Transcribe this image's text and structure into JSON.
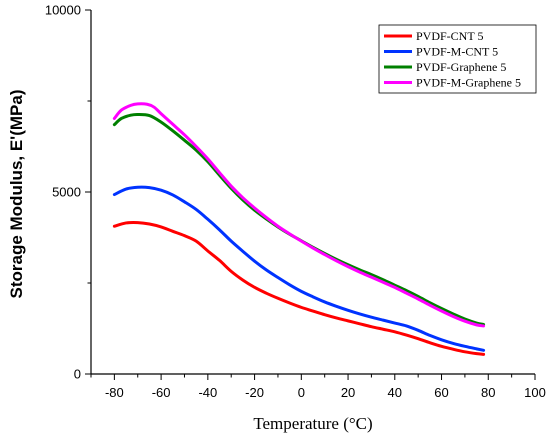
{
  "chart_data": {
    "type": "line",
    "xlabel": "Temperature (°C)",
    "ylabel": "Storage Modulus, E'(MPa)",
    "xlim": [
      -90,
      100
    ],
    "ylim": [
      0,
      10000
    ],
    "x_ticks": [
      -80,
      -60,
      -40,
      -20,
      0,
      20,
      40,
      60,
      80,
      100
    ],
    "y_ticks": [
      0,
      5000,
      10000
    ],
    "grid": false,
    "legend_position": "top-right",
    "series": [
      {
        "name": "PVDF-CNT 5",
        "color": "#ff0000",
        "points": [
          [
            -80,
            4060
          ],
          [
            -75,
            4150
          ],
          [
            -70,
            4160
          ],
          [
            -65,
            4120
          ],
          [
            -60,
            4040
          ],
          [
            -55,
            3920
          ],
          [
            -50,
            3800
          ],
          [
            -45,
            3650
          ],
          [
            -40,
            3380
          ],
          [
            -35,
            3120
          ],
          [
            -30,
            2820
          ],
          [
            -25,
            2580
          ],
          [
            -20,
            2380
          ],
          [
            -15,
            2220
          ],
          [
            -10,
            2080
          ],
          [
            -5,
            1950
          ],
          [
            0,
            1830
          ],
          [
            5,
            1730
          ],
          [
            10,
            1630
          ],
          [
            15,
            1540
          ],
          [
            20,
            1460
          ],
          [
            25,
            1380
          ],
          [
            30,
            1300
          ],
          [
            35,
            1230
          ],
          [
            40,
            1160
          ],
          [
            45,
            1070
          ],
          [
            50,
            970
          ],
          [
            55,
            860
          ],
          [
            60,
            760
          ],
          [
            65,
            680
          ],
          [
            70,
            610
          ],
          [
            75,
            560
          ],
          [
            78,
            540
          ]
        ]
      },
      {
        "name": "PVDF-M-CNT 5",
        "color": "#0033ff",
        "points": [
          [
            -80,
            4930
          ],
          [
            -75,
            5080
          ],
          [
            -70,
            5130
          ],
          [
            -65,
            5120
          ],
          [
            -60,
            5050
          ],
          [
            -55,
            4920
          ],
          [
            -50,
            4730
          ],
          [
            -45,
            4520
          ],
          [
            -40,
            4250
          ],
          [
            -35,
            3960
          ],
          [
            -30,
            3650
          ],
          [
            -25,
            3370
          ],
          [
            -20,
            3100
          ],
          [
            -15,
            2860
          ],
          [
            -10,
            2650
          ],
          [
            -5,
            2450
          ],
          [
            0,
            2270
          ],
          [
            5,
            2120
          ],
          [
            10,
            1980
          ],
          [
            15,
            1860
          ],
          [
            20,
            1750
          ],
          [
            25,
            1650
          ],
          [
            30,
            1560
          ],
          [
            35,
            1480
          ],
          [
            40,
            1400
          ],
          [
            45,
            1320
          ],
          [
            50,
            1200
          ],
          [
            55,
            1060
          ],
          [
            60,
            940
          ],
          [
            65,
            840
          ],
          [
            70,
            760
          ],
          [
            75,
            690
          ],
          [
            78,
            650
          ]
        ]
      },
      {
        "name": "PVDF-Graphene 5",
        "color": "#008000",
        "points": [
          [
            -80,
            6850
          ],
          [
            -77,
            7020
          ],
          [
            -73,
            7110
          ],
          [
            -70,
            7130
          ],
          [
            -65,
            7100
          ],
          [
            -60,
            6920
          ],
          [
            -55,
            6680
          ],
          [
            -50,
            6420
          ],
          [
            -45,
            6150
          ],
          [
            -40,
            5830
          ],
          [
            -35,
            5460
          ],
          [
            -30,
            5100
          ],
          [
            -25,
            4780
          ],
          [
            -20,
            4500
          ],
          [
            -15,
            4260
          ],
          [
            -10,
            4040
          ],
          [
            -5,
            3840
          ],
          [
            0,
            3660
          ],
          [
            5,
            3480
          ],
          [
            10,
            3310
          ],
          [
            15,
            3150
          ],
          [
            20,
            3000
          ],
          [
            25,
            2860
          ],
          [
            30,
            2730
          ],
          [
            35,
            2590
          ],
          [
            40,
            2440
          ],
          [
            45,
            2290
          ],
          [
            50,
            2130
          ],
          [
            55,
            1960
          ],
          [
            60,
            1800
          ],
          [
            65,
            1650
          ],
          [
            70,
            1510
          ],
          [
            75,
            1400
          ],
          [
            78,
            1360
          ]
        ]
      },
      {
        "name": "PVDF-M-Graphene 5",
        "color": "#ff00ff",
        "points": [
          [
            -80,
            7020
          ],
          [
            -77,
            7250
          ],
          [
            -73,
            7380
          ],
          [
            -70,
            7420
          ],
          [
            -66,
            7410
          ],
          [
            -63,
            7330
          ],
          [
            -60,
            7150
          ],
          [
            -55,
            6860
          ],
          [
            -50,
            6570
          ],
          [
            -45,
            6250
          ],
          [
            -40,
            5910
          ],
          [
            -35,
            5530
          ],
          [
            -30,
            5160
          ],
          [
            -25,
            4840
          ],
          [
            -20,
            4560
          ],
          [
            -15,
            4300
          ],
          [
            -10,
            4060
          ],
          [
            -5,
            3850
          ],
          [
            0,
            3650
          ],
          [
            5,
            3460
          ],
          [
            10,
            3280
          ],
          [
            15,
            3110
          ],
          [
            20,
            2950
          ],
          [
            25,
            2800
          ],
          [
            30,
            2660
          ],
          [
            35,
            2520
          ],
          [
            40,
            2380
          ],
          [
            45,
            2220
          ],
          [
            50,
            2060
          ],
          [
            55,
            1890
          ],
          [
            60,
            1730
          ],
          [
            65,
            1580
          ],
          [
            70,
            1450
          ],
          [
            75,
            1350
          ],
          [
            78,
            1320
          ]
        ]
      }
    ]
  }
}
